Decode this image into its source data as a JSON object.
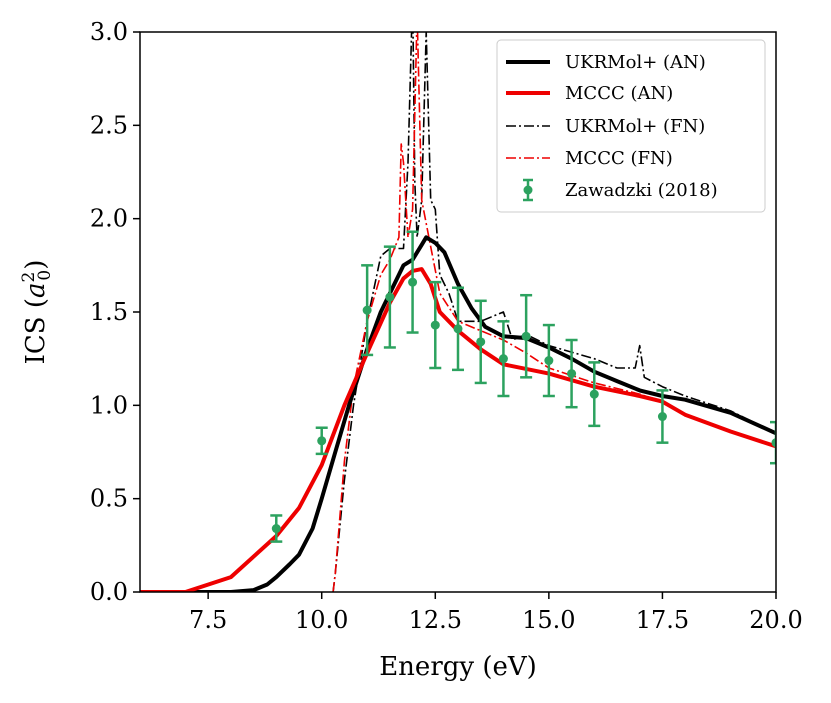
{
  "chart_data": {
    "type": "line",
    "title": "",
    "xlabel": "Energy (eV)",
    "ylabel_prefix": "ICS (",
    "ylabel_symbol": "a",
    "ylabel_sub": "0",
    "ylabel_sup": "2",
    "ylabel_suffix": ")",
    "xlim": [
      6,
      20
    ],
    "ylim": [
      0,
      3
    ],
    "xticks": [
      "7.5",
      "10.0",
      "12.5",
      "15.0",
      "17.5",
      "20.0"
    ],
    "xtick_values": [
      7.5,
      10,
      12.5,
      15,
      17.5,
      20
    ],
    "yticks": [
      "0.0",
      "0.5",
      "1.0",
      "1.5",
      "2.0",
      "2.5",
      "3.0"
    ],
    "ytick_values": [
      0,
      0.5,
      1,
      1.5,
      2,
      2.5,
      3
    ],
    "legend_position": "top-right",
    "series": [
      {
        "name": "UKRMol+ (AN)",
        "color": "#000000",
        "style": "solid-thick",
        "points": [
          [
            6,
            0
          ],
          [
            8,
            0
          ],
          [
            8.5,
            0.01
          ],
          [
            8.8,
            0.04
          ],
          [
            9,
            0.08
          ],
          [
            9.3,
            0.15
          ],
          [
            9.5,
            0.2
          ],
          [
            9.8,
            0.34
          ],
          [
            10,
            0.5
          ],
          [
            10.3,
            0.75
          ],
          [
            10.6,
            1.0
          ],
          [
            11,
            1.3
          ],
          [
            11.3,
            1.5
          ],
          [
            11.6,
            1.65
          ],
          [
            11.8,
            1.75
          ],
          [
            12,
            1.78
          ],
          [
            12.2,
            1.86
          ],
          [
            12.3,
            1.9
          ],
          [
            12.5,
            1.87
          ],
          [
            12.7,
            1.82
          ],
          [
            13,
            1.65
          ],
          [
            13.3,
            1.52
          ],
          [
            13.6,
            1.42
          ],
          [
            14,
            1.37
          ],
          [
            14.5,
            1.36
          ],
          [
            15,
            1.31
          ],
          [
            15.5,
            1.25
          ],
          [
            16,
            1.18
          ],
          [
            16.5,
            1.13
          ],
          [
            17,
            1.08
          ],
          [
            17.5,
            1.05
          ],
          [
            18,
            1.03
          ],
          [
            19,
            0.96
          ],
          [
            20,
            0.85
          ]
        ]
      },
      {
        "name": "MCCC (AN)",
        "color": "#ee0000",
        "style": "solid-thick",
        "points": [
          [
            6,
            0
          ],
          [
            7,
            0
          ],
          [
            8,
            0.08
          ],
          [
            9,
            0.3
          ],
          [
            9.5,
            0.45
          ],
          [
            10,
            0.68
          ],
          [
            10.5,
            1.0
          ],
          [
            11,
            1.28
          ],
          [
            11.5,
            1.55
          ],
          [
            11.8,
            1.68
          ],
          [
            12,
            1.72
          ],
          [
            12.2,
            1.73
          ],
          [
            12.4,
            1.65
          ],
          [
            12.6,
            1.5
          ],
          [
            13,
            1.4
          ],
          [
            13.5,
            1.3
          ],
          [
            14,
            1.22
          ],
          [
            15,
            1.17
          ],
          [
            16,
            1.1
          ],
          [
            17,
            1.05
          ],
          [
            17.5,
            1.02
          ],
          [
            18,
            0.95
          ],
          [
            19,
            0.86
          ],
          [
            20,
            0.78
          ]
        ]
      },
      {
        "name": "UKRMol+ (FN)",
        "color": "#000000",
        "style": "dashdot",
        "points": [
          [
            10.25,
            0
          ],
          [
            10.3,
            0.1
          ],
          [
            10.5,
            0.6
          ],
          [
            10.7,
            1.0
          ],
          [
            11,
            1.45
          ],
          [
            11.3,
            1.8
          ],
          [
            11.5,
            1.84
          ],
          [
            11.8,
            1.84
          ],
          [
            11.9,
            2.3
          ],
          [
            12.0,
            3.2
          ],
          [
            12.05,
            2.2
          ],
          [
            12.1,
            1.9
          ],
          [
            12.2,
            2.1
          ],
          [
            12.3,
            3.0
          ],
          [
            12.4,
            2.1
          ],
          [
            12.5,
            2.05
          ],
          [
            12.6,
            1.7
          ],
          [
            12.8,
            1.6
          ],
          [
            13,
            1.45
          ],
          [
            13.5,
            1.45
          ],
          [
            14,
            1.5
          ],
          [
            14.2,
            1.35
          ],
          [
            14.5,
            1.38
          ],
          [
            15,
            1.32
          ],
          [
            16,
            1.25
          ],
          [
            16.5,
            1.2
          ],
          [
            16.9,
            1.2
          ],
          [
            17,
            1.32
          ],
          [
            17.1,
            1.15
          ],
          [
            17.5,
            1.1
          ],
          [
            18,
            1.05
          ],
          [
            19,
            0.97
          ],
          [
            20,
            0.85
          ]
        ]
      },
      {
        "name": "MCCC (FN)",
        "color": "#ee0000",
        "style": "dashdot",
        "points": [
          [
            10.25,
            0
          ],
          [
            10.3,
            0.1
          ],
          [
            10.5,
            0.7
          ],
          [
            10.7,
            1.1
          ],
          [
            11,
            1.45
          ],
          [
            11.3,
            1.7
          ],
          [
            11.5,
            1.78
          ],
          [
            11.7,
            1.9
          ],
          [
            11.75,
            2.4
          ],
          [
            11.8,
            2.3
          ],
          [
            11.9,
            1.9
          ],
          [
            12,
            2.05
          ],
          [
            12.1,
            3.1
          ],
          [
            12.15,
            2.6
          ],
          [
            12.2,
            2.1
          ],
          [
            12.4,
            1.85
          ],
          [
            12.6,
            1.6
          ],
          [
            13,
            1.45
          ],
          [
            13.5,
            1.4
          ],
          [
            14,
            1.35
          ],
          [
            14.5,
            1.28
          ],
          [
            15,
            1.2
          ],
          [
            16,
            1.12
          ],
          [
            17,
            1.06
          ],
          [
            17.5,
            1.02
          ],
          [
            18,
            0.95
          ],
          [
            19,
            0.86
          ],
          [
            20,
            0.78
          ]
        ]
      }
    ],
    "errorbars": {
      "name": "Zawadzki (2018)",
      "color": "#2ca25f",
      "points": [
        {
          "x": 9.0,
          "y": 0.34,
          "err": 0.07
        },
        {
          "x": 10.0,
          "y": 0.81,
          "err": 0.07
        },
        {
          "x": 11.0,
          "y": 1.51,
          "err": 0.24
        },
        {
          "x": 11.5,
          "y": 1.58,
          "err": 0.27
        },
        {
          "x": 12.0,
          "y": 1.66,
          "err": 0.27
        },
        {
          "x": 12.5,
          "y": 1.43,
          "err": 0.23
        },
        {
          "x": 13.0,
          "y": 1.41,
          "err": 0.22
        },
        {
          "x": 13.5,
          "y": 1.34,
          "err": 0.22
        },
        {
          "x": 14.0,
          "y": 1.25,
          "err": 0.2
        },
        {
          "x": 14.5,
          "y": 1.37,
          "err": 0.22
        },
        {
          "x": 15.0,
          "y": 1.24,
          "err": 0.19
        },
        {
          "x": 15.5,
          "y": 1.17,
          "err": 0.18
        },
        {
          "x": 16.0,
          "y": 1.06,
          "err": 0.17
        },
        {
          "x": 17.5,
          "y": 0.94,
          "err": 0.14
        },
        {
          "x": 20.0,
          "y": 0.8,
          "err": 0.11
        }
      ]
    }
  }
}
